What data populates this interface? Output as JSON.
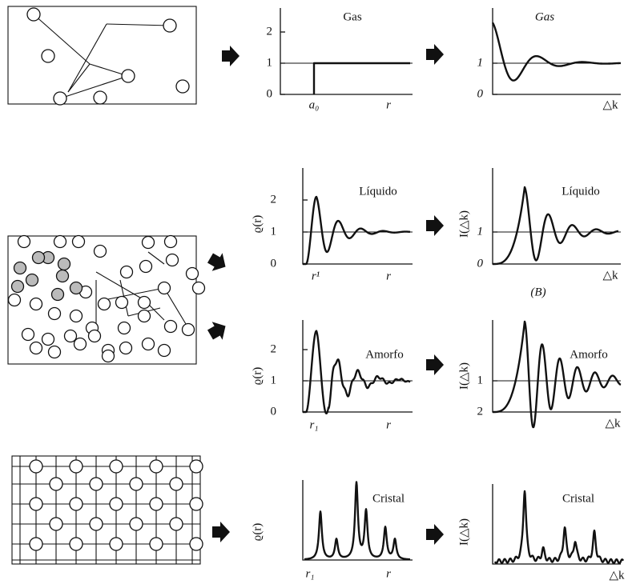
{
  "panels": [
    {
      "title": "Gas",
      "yticks": [
        "2",
        "1",
        "0"
      ],
      "xlabels": [
        "a₀",
        "r"
      ]
    },
    {
      "title": "Gas",
      "yticks": [
        "1",
        "0"
      ],
      "xlabels": [
        "△k"
      ]
    },
    {
      "title": "Líquido",
      "ylabel": "ϱ(r)",
      "yticks": [
        "2",
        "1",
        "0"
      ],
      "xlabels": [
        "r¹",
        "r"
      ]
    },
    {
      "title": "Líquido",
      "ylabel": "I(△k)",
      "yticks": [
        "1",
        "0"
      ],
      "xlabels": [
        "△k"
      ]
    },
    {
      "title": "Amorfo",
      "ylabel": "ϱ(r)",
      "yticks": [
        "2",
        "1",
        "0"
      ],
      "xlabels": [
        "r₁",
        "r"
      ]
    },
    {
      "title": "Amorfo",
      "ylabel": "I(△k)",
      "yticks": [
        "1",
        "2"
      ],
      "xlabels": [
        "△k"
      ]
    },
    {
      "title": "Cristal",
      "ylabel": "ϱ(r)",
      "xlabels": [
        "r₁",
        "r"
      ]
    },
    {
      "title": "Cristal",
      "ylabel": "I(△k)",
      "xlabels": [
        "△k"
      ]
    }
  ],
  "caption": "(B)"
}
